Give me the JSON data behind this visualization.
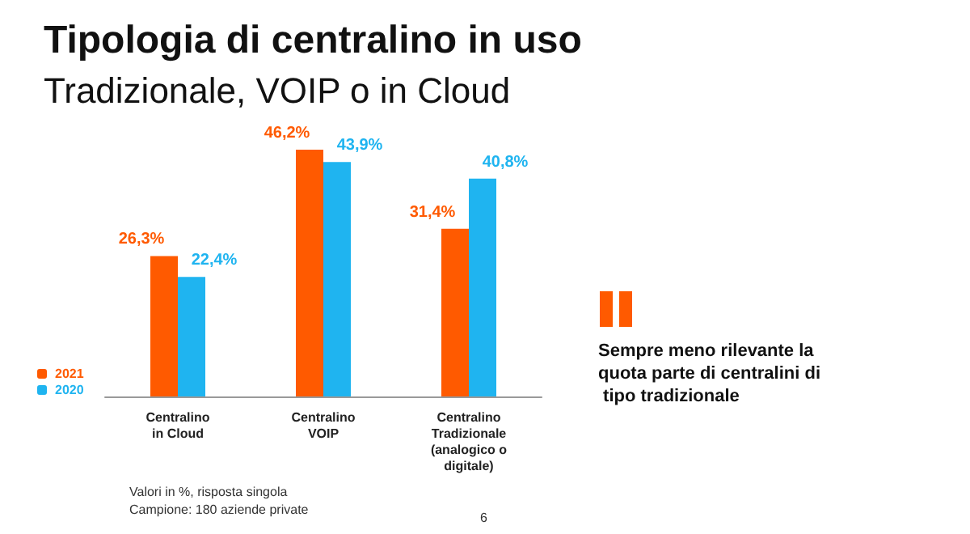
{
  "chart_data": {
    "type": "bar",
    "title": "Tipologia di centralino in uso",
    "subtitle": "Tradizionale, VOIP o in Cloud",
    "categories": [
      "Centralino\nin Cloud",
      "Centralino\nVOIP",
      "Centralino\nTradizionale\n(analogico o\ndigitale)"
    ],
    "series": [
      {
        "name": "2021",
        "color": "#ff5a00",
        "values": [
          26.3,
          46.2,
          31.4
        ],
        "value_labels": [
          "26,3%",
          "46,2%",
          "31,4%"
        ]
      },
      {
        "name": "2020",
        "color": "#1fb4f0",
        "values": [
          22.4,
          43.9,
          40.8
        ],
        "value_labels": [
          "22,4%",
          "43,9%",
          "40,8%"
        ]
      }
    ],
    "legend": "bottom left",
    "grid": false,
    "annotations": [
      "Sempre meno rilevante la quota parte di centralini di tipo tradizionale",
      "Valori in %, risposta singola",
      "Campione: 180 aziende private",
      "6"
    ]
  }
}
